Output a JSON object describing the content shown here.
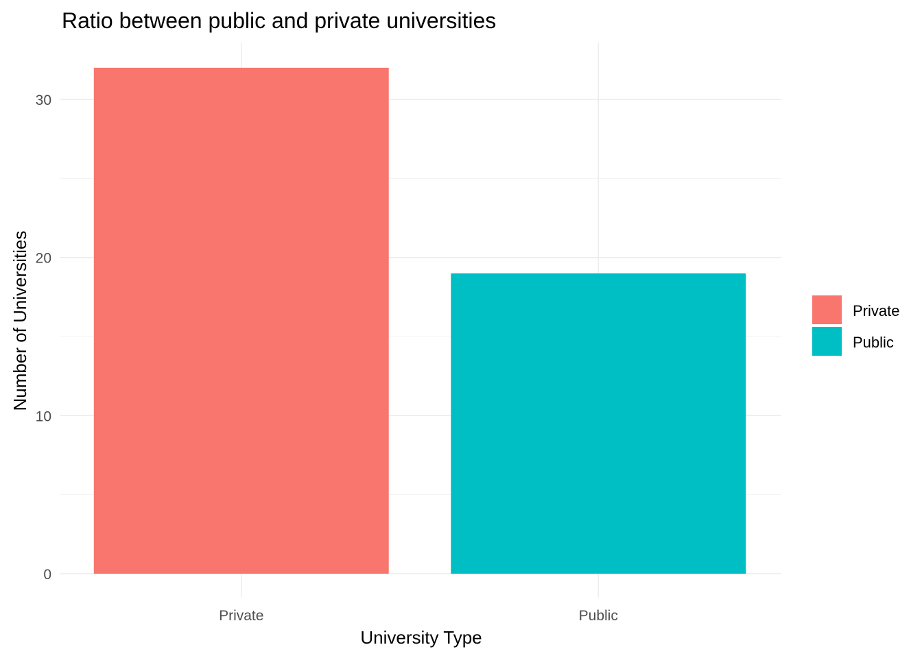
{
  "chart_data": {
    "type": "bar",
    "title": "Ratio between public and private universities",
    "xlabel": "University Type",
    "ylabel": "Number of Universities",
    "categories": [
      "Private",
      "Public"
    ],
    "values": [
      32,
      19
    ],
    "colors": [
      "#F8766D",
      "#00BFC4"
    ],
    "ylim": [
      0,
      33.6
    ],
    "yticks": [
      0,
      10,
      20,
      30
    ],
    "grid": true,
    "legend": {
      "position": "right",
      "entries": [
        {
          "label": "Private",
          "color": "#F8766D"
        },
        {
          "label": "Public",
          "color": "#00BFC4"
        }
      ]
    }
  }
}
